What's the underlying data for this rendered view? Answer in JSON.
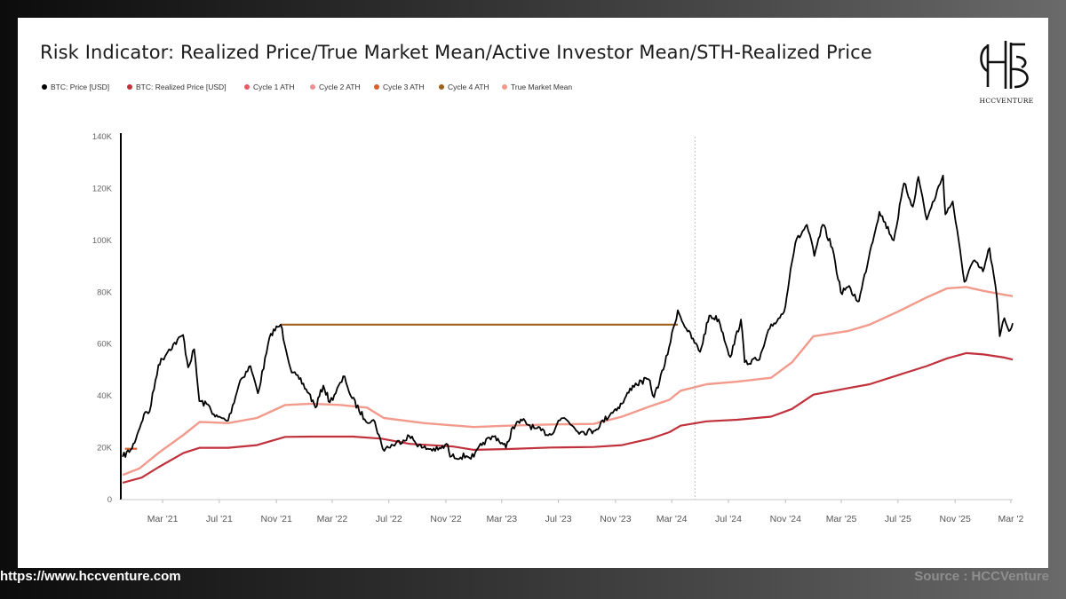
{
  "title": "Risk Indicator: Realized Price/True Market Mean/Active Investor Mean/STH-Realized Price",
  "logo": {
    "text": "HCCVENTURE",
    "icon": "hcc-monogram-icon"
  },
  "footer": {
    "url": "https://www.hccventure.com",
    "source": "Source : HCCVenture"
  },
  "colors": {
    "price": "#000000",
    "realized": "#c0313b",
    "cycle1": "#e85a62",
    "cycle2": "#ef8f8f",
    "cycle3": "#d85f2e",
    "cycle4": "#a0601c",
    "tmm": "#f29a8c"
  },
  "chart_data": {
    "type": "line",
    "x_axis": {
      "type": "date",
      "range": [
        "2020-12-01",
        "2026-03-05"
      ],
      "ticks": [
        {
          "date": "2021-03-01",
          "label": "Mar '21"
        },
        {
          "date": "2021-07-01",
          "label": "Jul '21"
        },
        {
          "date": "2021-11-01",
          "label": "Nov '21"
        },
        {
          "date": "2022-03-01",
          "label": "Mar '22"
        },
        {
          "date": "2022-07-01",
          "label": "Jul '22"
        },
        {
          "date": "2022-11-01",
          "label": "Nov '22"
        },
        {
          "date": "2023-03-01",
          "label": "Mar '23"
        },
        {
          "date": "2023-07-01",
          "label": "Jul '23"
        },
        {
          "date": "2023-11-01",
          "label": "Nov '23"
        },
        {
          "date": "2024-03-01",
          "label": "Mar '24"
        },
        {
          "date": "2024-07-01",
          "label": "Jul '24"
        },
        {
          "date": "2024-11-01",
          "label": "Nov '24"
        },
        {
          "date": "2025-03-01",
          "label": "Mar '25"
        },
        {
          "date": "2025-07-01",
          "label": "Jul '25"
        },
        {
          "date": "2025-11-01",
          "label": "Nov '25"
        },
        {
          "date": "2026-03-01",
          "label": "Mar '2"
        }
      ]
    },
    "y_axis": {
      "range": [
        0,
        140000
      ],
      "ticks": [
        {
          "value": 0,
          "label": "0"
        },
        {
          "value": 20000,
          "label": "20K"
        },
        {
          "value": 40000,
          "label": "40K"
        },
        {
          "value": 60000,
          "label": "60K"
        },
        {
          "value": 80000,
          "label": "80K"
        },
        {
          "value": 100000,
          "label": "100K"
        },
        {
          "value": 120000,
          "label": "120K"
        },
        {
          "value": 140000,
          "label": "140K"
        }
      ]
    },
    "grid": false,
    "legend_position": "top-left",
    "vertical_marker": "2024-04-20",
    "series": [
      {
        "name": "BTC: Price [USD]",
        "key": "price",
        "points": [
          [
            "2020-12-05",
            16500
          ],
          [
            "2020-12-25",
            19800
          ],
          [
            "2021-01-08",
            26500
          ],
          [
            "2021-01-20",
            33000
          ],
          [
            "2021-02-01",
            34000
          ],
          [
            "2021-02-20",
            52000
          ],
          [
            "2021-03-15",
            58000
          ],
          [
            "2021-04-14",
            63500
          ],
          [
            "2021-04-25",
            51000
          ],
          [
            "2021-05-08",
            58000
          ],
          [
            "2021-05-19",
            38000
          ],
          [
            "2021-06-10",
            36000
          ],
          [
            "2021-06-22",
            32000
          ],
          [
            "2021-07-20",
            30500
          ],
          [
            "2021-08-15",
            46000
          ],
          [
            "2021-09-06",
            51500
          ],
          [
            "2021-09-22",
            41000
          ],
          [
            "2021-10-20",
            64000
          ],
          [
            "2021-11-10",
            67500
          ],
          [
            "2021-12-04",
            49000
          ],
          [
            "2021-12-20",
            46500
          ],
          [
            "2022-01-10",
            41000
          ],
          [
            "2022-01-24",
            35500
          ],
          [
            "2022-02-10",
            44000
          ],
          [
            "2022-02-24",
            37500
          ],
          [
            "2022-03-28",
            47500
          ],
          [
            "2022-04-10",
            40000
          ],
          [
            "2022-05-10",
            31000
          ],
          [
            "2022-06-01",
            30000
          ],
          [
            "2022-06-18",
            19500
          ],
          [
            "2022-07-10",
            21000
          ],
          [
            "2022-08-14",
            24500
          ],
          [
            "2022-09-10",
            20000
          ],
          [
            "2022-10-15",
            19200
          ],
          [
            "2022-11-05",
            21200
          ],
          [
            "2022-11-10",
            16500
          ],
          [
            "2022-12-15",
            16800
          ],
          [
            "2022-12-31",
            16500
          ],
          [
            "2023-01-20",
            22000
          ],
          [
            "2023-02-15",
            24500
          ],
          [
            "2023-03-10",
            20000
          ],
          [
            "2023-03-25",
            28000
          ],
          [
            "2023-04-14",
            30500
          ],
          [
            "2023-05-10",
            27500
          ],
          [
            "2023-06-15",
            25000
          ],
          [
            "2023-07-01",
            30500
          ],
          [
            "2023-07-14",
            31500
          ],
          [
            "2023-08-18",
            26000
          ],
          [
            "2023-09-15",
            26500
          ],
          [
            "2023-10-23",
            33500
          ],
          [
            "2023-11-15",
            37000
          ],
          [
            "2023-12-08",
            44000
          ],
          [
            "2024-01-11",
            46500
          ],
          [
            "2024-01-23",
            39500
          ],
          [
            "2024-02-15",
            52000
          ],
          [
            "2024-03-14",
            73000
          ],
          [
            "2024-04-01",
            66000
          ],
          [
            "2024-05-01",
            57000
          ],
          [
            "2024-05-21",
            71000
          ],
          [
            "2024-06-10",
            69500
          ],
          [
            "2024-07-05",
            55000
          ],
          [
            "2024-07-28",
            69500
          ],
          [
            "2024-08-05",
            53000
          ],
          [
            "2024-09-06",
            54000
          ],
          [
            "2024-09-28",
            66000
          ],
          [
            "2024-10-29",
            72500
          ],
          [
            "2024-11-12",
            89000
          ],
          [
            "2024-11-22",
            99000
          ],
          [
            "2024-12-17",
            106000
          ],
          [
            "2025-01-02",
            94000
          ],
          [
            "2025-01-20",
            106000
          ],
          [
            "2025-02-10",
            97000
          ],
          [
            "2025-02-28",
            80000
          ],
          [
            "2025-03-15",
            82000
          ],
          [
            "2025-04-08",
            76500
          ],
          [
            "2025-05-02",
            96000
          ],
          [
            "2025-05-22",
            111000
          ],
          [
            "2025-06-22",
            100000
          ],
          [
            "2025-07-14",
            122000
          ],
          [
            "2025-08-02",
            113000
          ],
          [
            "2025-08-14",
            124500
          ],
          [
            "2025-09-01",
            108000
          ],
          [
            "2025-10-06",
            125000
          ],
          [
            "2025-10-11",
            110000
          ],
          [
            "2025-10-27",
            115000
          ],
          [
            "2025-11-21",
            84000
          ],
          [
            "2025-12-10",
            92000
          ],
          [
            "2025-12-31",
            88000
          ],
          [
            "2026-01-14",
            97000
          ],
          [
            "2026-01-30",
            78000
          ],
          [
            "2026-02-05",
            63000
          ],
          [
            "2026-02-15",
            70000
          ],
          [
            "2026-02-25",
            65000
          ],
          [
            "2026-03-05",
            68000
          ]
        ]
      },
      {
        "name": "BTC: Realized Price [USD]",
        "key": "realized",
        "points": [
          [
            "2020-12-05",
            6500
          ],
          [
            "2021-01-15",
            8500
          ],
          [
            "2021-02-20",
            12500
          ],
          [
            "2021-04-15",
            18000
          ],
          [
            "2021-05-20",
            20000
          ],
          [
            "2021-07-20",
            20000
          ],
          [
            "2021-09-20",
            21000
          ],
          [
            "2021-11-20",
            24200
          ],
          [
            "2022-01-15",
            24300
          ],
          [
            "2022-04-15",
            24300
          ],
          [
            "2022-06-15",
            23500
          ],
          [
            "2022-08-15",
            21500
          ],
          [
            "2022-11-15",
            20500
          ],
          [
            "2022-12-31",
            19200
          ],
          [
            "2023-03-15",
            19500
          ],
          [
            "2023-06-15",
            20100
          ],
          [
            "2023-09-15",
            20300
          ],
          [
            "2023-11-15",
            21000
          ],
          [
            "2024-01-15",
            23500
          ],
          [
            "2024-02-25",
            26000
          ],
          [
            "2024-03-20",
            28500
          ],
          [
            "2024-05-15",
            30200
          ],
          [
            "2024-07-20",
            30800
          ],
          [
            "2024-10-01",
            32000
          ],
          [
            "2024-11-15",
            35000
          ],
          [
            "2024-12-31",
            40500
          ],
          [
            "2025-03-15",
            43000
          ],
          [
            "2025-05-01",
            44500
          ],
          [
            "2025-07-01",
            48000
          ],
          [
            "2025-09-01",
            51500
          ],
          [
            "2025-10-15",
            54500
          ],
          [
            "2025-11-25",
            56500
          ],
          [
            "2026-01-01",
            56000
          ],
          [
            "2026-02-15",
            54800
          ],
          [
            "2026-03-05",
            54000
          ]
        ]
      },
      {
        "name": "Cycle 1 ATH",
        "key": "cycle1",
        "points": []
      },
      {
        "name": "Cycle 2 ATH",
        "key": "cycle2",
        "points": []
      },
      {
        "name": "Cycle 3 ATH",
        "key": "cycle3",
        "points": [
          [
            "2020-12-10",
            19600
          ],
          [
            "2021-01-05",
            19600
          ]
        ]
      },
      {
        "name": "Cycle 4 ATH",
        "key": "cycle4",
        "points": [
          [
            "2021-11-10",
            67500
          ],
          [
            "2024-03-14",
            67500
          ]
        ]
      },
      {
        "name": "True Market Mean",
        "key": "tmm",
        "points": [
          [
            "2020-12-05",
            9500
          ],
          [
            "2021-01-10",
            12000
          ],
          [
            "2021-02-20",
            18000
          ],
          [
            "2021-04-15",
            25000
          ],
          [
            "2021-05-20",
            30000
          ],
          [
            "2021-07-20",
            29500
          ],
          [
            "2021-09-20",
            31500
          ],
          [
            "2021-11-20",
            36500
          ],
          [
            "2022-01-15",
            37000
          ],
          [
            "2022-03-20",
            36500
          ],
          [
            "2022-05-15",
            35500
          ],
          [
            "2022-06-20",
            31500
          ],
          [
            "2022-09-15",
            29500
          ],
          [
            "2022-12-31",
            28000
          ],
          [
            "2023-03-15",
            28500
          ],
          [
            "2023-06-15",
            29000
          ],
          [
            "2023-09-15",
            29200
          ],
          [
            "2023-11-15",
            32000
          ],
          [
            "2024-01-15",
            36000
          ],
          [
            "2024-02-25",
            38500
          ],
          [
            "2024-03-20",
            42000
          ],
          [
            "2024-05-15",
            44500
          ],
          [
            "2024-07-20",
            45500
          ],
          [
            "2024-10-01",
            47000
          ],
          [
            "2024-11-15",
            53000
          ],
          [
            "2024-12-31",
            63000
          ],
          [
            "2025-03-15",
            65000
          ],
          [
            "2025-05-01",
            67500
          ],
          [
            "2025-07-01",
            72500
          ],
          [
            "2025-09-01",
            78000
          ],
          [
            "2025-10-15",
            81500
          ],
          [
            "2025-11-25",
            82000
          ],
          [
            "2026-01-01",
            80500
          ],
          [
            "2026-02-15",
            79000
          ],
          [
            "2026-03-05",
            78500
          ]
        ]
      }
    ]
  }
}
